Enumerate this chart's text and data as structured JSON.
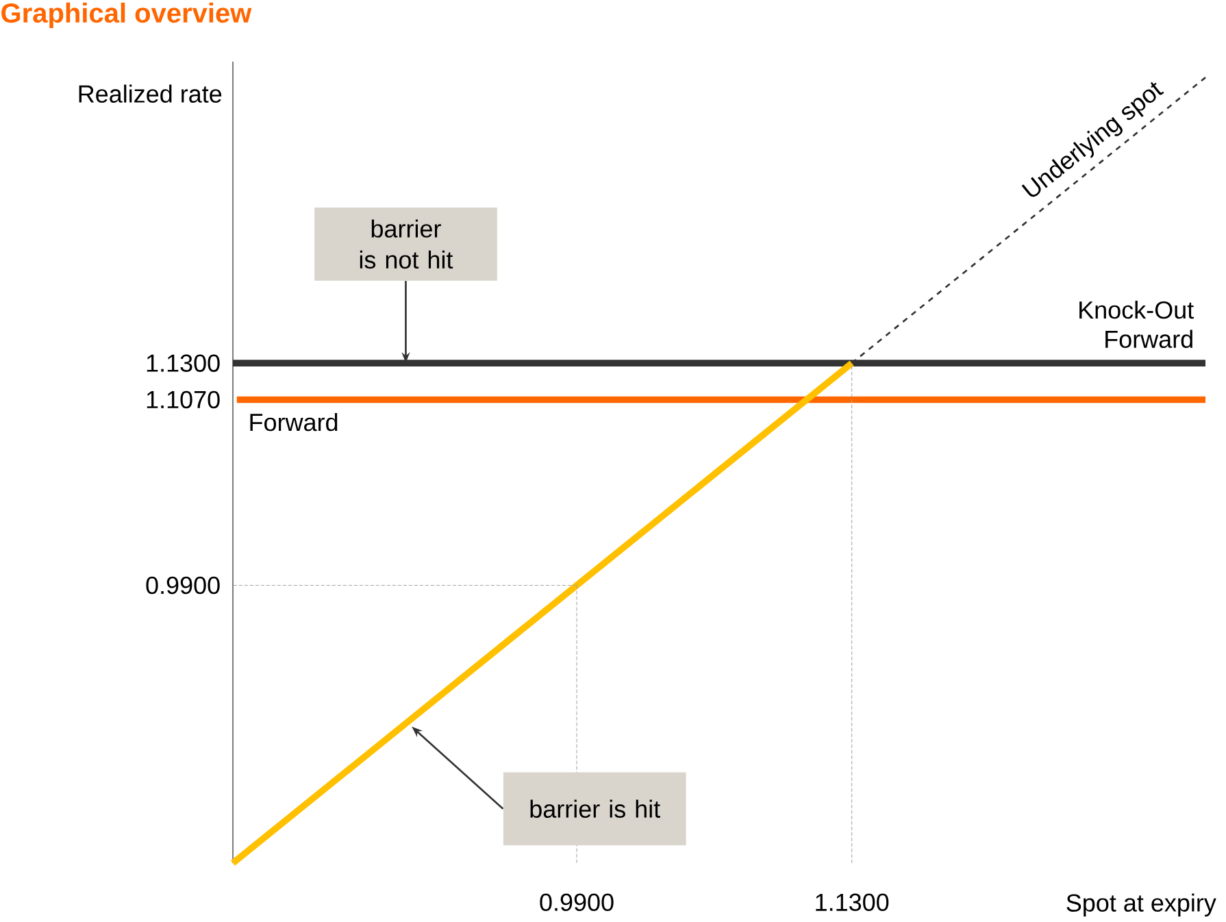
{
  "chart_data": {
    "type": "line",
    "title": "Graphical overview",
    "xlabel": "Spot at expiry",
    "ylabel": "Realized rate",
    "xlim": [
      0.815,
      1.31
    ],
    "ylim": [
      0.815,
      1.32
    ],
    "xticks": [
      {
        "value": 0.99,
        "label": "0.9900"
      },
      {
        "value": 1.13,
        "label": "1.1300"
      }
    ],
    "yticks": [
      {
        "value": 0.99,
        "label": "0.9900"
      },
      {
        "value": 1.107,
        "label": "1.1070"
      },
      {
        "value": 1.13,
        "label": "1.1300"
      }
    ],
    "series": [
      {
        "x": [
          0.99,
          0.99
        ],
        "values": [
          0.99,
          0.815
        ],
        "color": "#a6a6a6",
        "line_style": "dotted"
      },
      {
        "x": [
          0.99,
          0.815
        ],
        "values": [
          0.99,
          0.99
        ],
        "color": "#a6a6a6",
        "line_style": "dotted"
      },
      {
        "x": [
          1.13,
          1.13
        ],
        "values": [
          0.815,
          1.13
        ],
        "color": "#a6a6a6",
        "line_style": "dotted"
      },
      {
        "name": "Forward",
        "x": [
          0.817,
          1.31
        ],
        "values": [
          1.107,
          1.107
        ],
        "color": "#ff6600",
        "line_style": "solid"
      },
      {
        "name": "Knock-Out Forward",
        "x": [
          0.815,
          1.31
        ],
        "values": [
          1.13,
          1.13
        ],
        "color": "#333333",
        "line_style": "solid"
      },
      {
        "name": "Underlying spot",
        "x": [
          1.13,
          1.31
        ],
        "values": [
          1.13,
          1.31
        ],
        "color": "#333333",
        "line_style": "dashed"
      },
      {
        "x": [
          0.815,
          1.13
        ],
        "values": [
          0.815,
          1.13
        ],
        "color": "#ffc000",
        "line_style": "solid"
      }
    ],
    "annotations": [
      {
        "text": "barrier is not hit",
        "x": 0.903,
        "y": 1.13
      },
      {
        "text": "barrier is hit",
        "x": 0.906,
        "y": 0.901
      }
    ],
    "legend": false
  }
}
